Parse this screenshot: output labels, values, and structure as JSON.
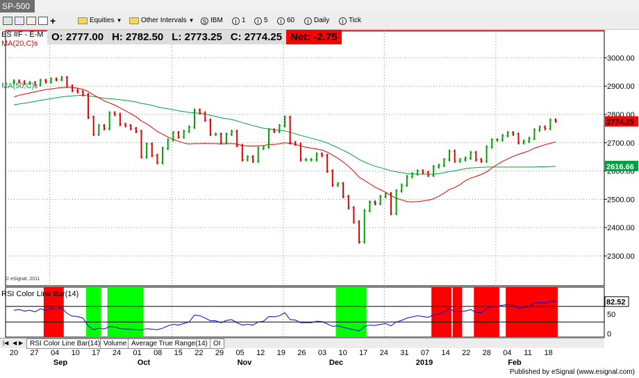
{
  "window": {
    "title": "SP-500"
  },
  "toolbar": {
    "items": [
      {
        "label": "Equities",
        "icon": "folder-icon"
      },
      {
        "label": "Other Intervals",
        "icon": "folder-icon"
      },
      {
        "label": "IBM",
        "icon": "S"
      },
      {
        "label": "1",
        "icon": "I"
      },
      {
        "label": "5",
        "icon": "I"
      },
      {
        "label": "60",
        "icon": "I"
      },
      {
        "label": "Daily",
        "icon": "I"
      },
      {
        "label": "Tick",
        "icon": "I"
      }
    ]
  },
  "quote": {
    "symbol_label": "ES #F - E-M",
    "ma_label": "MA(20,C)s",
    "open": "O: 2777.00",
    "high": "H: 2782.50",
    "low": "L: 2773.25",
    "close": "C: 2774.25",
    "net": "Net: -2.75"
  },
  "colors": {
    "up": "#00a000",
    "down": "#e00000",
    "ma20": "#e00000",
    "ma50": "#00a040",
    "rsi_line": "#0000dd",
    "overbought_zone": "#ff0000",
    "oversold_zone": "#00ff00",
    "net_bg": "#ff0000"
  },
  "price_axis": {
    "ticks": [
      "3000.00",
      "2900.00",
      "2800.00",
      "2700.00",
      "2600.00",
      "2500.00",
      "2400.00",
      "2300.00"
    ],
    "last_price": "2774.25",
    "ma50_value": "2616.66"
  },
  "price_watermark": "© eSignal, 2011",
  "ma50_label": "MA(50,C)s",
  "rsi_panel": {
    "title": "RSI Color Line Bar(14)",
    "value": "82.52",
    "ticks": [
      "50",
      "0"
    ]
  },
  "date_axis": {
    "days": [
      "20",
      "27",
      "04",
      "10",
      "17",
      "24",
      "01",
      "08",
      "15",
      "22",
      "29",
      "05",
      "12",
      "19",
      "26",
      "03",
      "10",
      "17",
      "24",
      "31",
      "07",
      "14",
      "22",
      "28",
      "04",
      "11",
      "18"
    ],
    "months": [
      "Sep",
      "Oct",
      "Nov",
      "Dec",
      "2019",
      "Feb"
    ]
  },
  "tabs": [
    "RSI Color Line Bar(14)",
    "Volume",
    "Average True Range(14)",
    "OI"
  ],
  "footer": {
    "published": "Published by eSignal (www.esignal.com)"
  },
  "chart_data": {
    "type": "candlestick",
    "x": [
      "2018-09-20",
      "2018-09-21",
      "2018-09-24",
      "2018-09-25",
      "2018-09-26",
      "2018-09-27",
      "2018-09-28",
      "2018-10-01",
      "2018-10-02",
      "2018-10-03",
      "2018-10-04",
      "2018-10-05",
      "2018-10-08",
      "2018-10-09",
      "2018-10-10",
      "2018-10-11",
      "2018-10-12",
      "2018-10-15",
      "2018-10-16",
      "2018-10-17",
      "2018-10-18",
      "2018-10-19",
      "2018-10-22",
      "2018-10-23",
      "2018-10-24",
      "2018-10-25",
      "2018-10-26",
      "2018-10-29",
      "2018-10-30",
      "2018-10-31",
      "2018-11-01",
      "2018-11-02",
      "2018-11-05",
      "2018-11-06",
      "2018-11-07",
      "2018-11-08",
      "2018-11-09",
      "2018-11-12",
      "2018-11-13",
      "2018-11-14",
      "2018-11-15",
      "2018-11-16",
      "2018-11-19",
      "2018-11-20",
      "2018-11-21",
      "2018-11-23",
      "2018-11-26",
      "2018-11-27",
      "2018-11-28",
      "2018-11-29",
      "2018-11-30",
      "2018-12-03",
      "2018-12-04",
      "2018-12-06",
      "2018-12-07",
      "2018-12-10",
      "2018-12-11",
      "2018-12-12",
      "2018-12-13",
      "2018-12-14",
      "2018-12-17",
      "2018-12-18",
      "2018-12-19",
      "2018-12-20",
      "2018-12-21",
      "2018-12-24",
      "2018-12-26",
      "2018-12-27",
      "2018-12-28",
      "2018-12-31",
      "2019-01-02",
      "2019-01-03",
      "2019-01-04",
      "2019-01-07",
      "2019-01-08",
      "2019-01-09",
      "2019-01-10",
      "2019-01-11",
      "2019-01-14",
      "2019-01-15",
      "2019-01-16",
      "2019-01-17",
      "2019-01-18",
      "2019-01-22",
      "2019-01-23",
      "2019-01-24",
      "2019-01-25",
      "2019-01-28",
      "2019-01-29",
      "2019-01-30",
      "2019-01-31",
      "2019-02-01",
      "2019-02-04",
      "2019-02-05",
      "2019-02-06",
      "2019-02-07",
      "2019-02-08",
      "2019-02-11",
      "2019-02-12",
      "2019-02-13",
      "2019-02-14",
      "2019-02-15",
      "2019-02-19"
    ],
    "close": [
      2918,
      2915,
      2910,
      2912,
      2905,
      2920,
      2915,
      2925,
      2923,
      2930,
      2900,
      2885,
      2880,
      2870,
      2790,
      2730,
      2760,
      2750,
      2805,
      2800,
      2765,
      2760,
      2750,
      2740,
      2650,
      2695,
      2655,
      2630,
      2680,
      2710,
      2735,
      2720,
      2740,
      2755,
      2815,
      2805,
      2780,
      2730,
      2730,
      2700,
      2730,
      2740,
      2690,
      2640,
      2650,
      2635,
      2680,
      2685,
      2745,
      2740,
      2760,
      2790,
      2700,
      2695,
      2640,
      2640,
      2640,
      2660,
      2655,
      2600,
      2550,
      2555,
      2510,
      2470,
      2420,
      2350,
      2460,
      2490,
      2485,
      2510,
      2520,
      2450,
      2530,
      2550,
      2580,
      2590,
      2600,
      2595,
      2585,
      2615,
      2620,
      2640,
      2670,
      2635,
      2640,
      2645,
      2665,
      2640,
      2635,
      2685,
      2710,
      2710,
      2725,
      2735,
      2730,
      2700,
      2705,
      2715,
      2745,
      2755,
      2750,
      2780,
      2777
    ],
    "ma20": [
      2862,
      2868,
      2872,
      2876,
      2880,
      2884,
      2888,
      2890,
      2893,
      2895,
      2896,
      2895,
      2893,
      2889,
      2881,
      2869,
      2859,
      2848,
      2841,
      2833,
      2823,
      2813,
      2803,
      2792,
      2777,
      2767,
      2754,
      2740,
      2730,
      2720,
      2712,
      2705,
      2699,
      2695,
      2697,
      2697,
      2698,
      2697,
      2697,
      2695,
      2697,
      2697,
      2695,
      2690,
      2689,
      2688,
      2689,
      2690,
      2694,
      2694,
      2696,
      2700,
      2698,
      2694,
      2688,
      2684,
      2681,
      2678,
      2674,
      2667,
      2656,
      2645,
      2632,
      2617,
      2599,
      2578,
      2567,
      2555,
      2543,
      2534,
      2525,
      2513,
      2504,
      2498,
      2492,
      2491,
      2492,
      2494,
      2497,
      2502,
      2511,
      2522,
      2535,
      2542,
      2552,
      2566,
      2575,
      2581,
      2588,
      2597,
      2611,
      2623,
      2634,
      2643,
      2652,
      2659,
      2665,
      2671,
      2681,
      2687,
      2693,
      2698,
      2703
    ],
    "ma50": [
      2834,
      2837,
      2840,
      2843,
      2846,
      2850,
      2853,
      2856,
      2859,
      2862,
      2864,
      2866,
      2867,
      2868,
      2866,
      2863,
      2860,
      2857,
      2856,
      2854,
      2852,
      2850,
      2847,
      2844,
      2839,
      2836,
      2832,
      2827,
      2823,
      2820,
      2817,
      2813,
      2810,
      2807,
      2806,
      2804,
      2801,
      2797,
      2793,
      2788,
      2785,
      2782,
      2777,
      2771,
      2766,
      2760,
      2756,
      2751,
      2749,
      2746,
      2744,
      2742,
      2737,
      2732,
      2726,
      2721,
      2716,
      2711,
      2706,
      2699,
      2691,
      2682,
      2673,
      2664,
      2653,
      2641,
      2632,
      2624,
      2617,
      2612,
      2607,
      2601,
      2597,
      2594,
      2591,
      2590,
      2589,
      2589,
      2589,
      2589,
      2591,
      2594,
      2598,
      2601,
      2605,
      2608,
      2611,
      2612,
      2613,
      2614,
      2614,
      2614,
      2614,
      2614,
      2614,
      2614,
      2614,
      2614,
      2614,
      2615,
      2615,
      2616,
      2617
    ],
    "rsi": [
      60,
      62,
      58,
      60,
      56,
      64,
      60,
      65,
      63,
      66,
      52,
      45,
      44,
      40,
      20,
      10,
      14,
      12,
      18,
      17,
      13,
      12,
      11,
      10,
      9,
      13,
      11,
      10,
      14,
      20,
      24,
      22,
      26,
      30,
      48,
      46,
      40,
      33,
      33,
      28,
      34,
      36,
      28,
      22,
      24,
      22,
      30,
      32,
      44,
      43,
      46,
      54,
      36,
      35,
      28,
      28,
      28,
      32,
      31,
      25,
      19,
      20,
      16,
      13,
      10,
      7,
      18,
      22,
      21,
      24,
      26,
      20,
      30,
      34,
      40,
      43,
      46,
      44,
      42,
      48,
      50,
      56,
      64,
      56,
      57,
      58,
      62,
      55,
      54,
      64,
      70,
      70,
      73,
      75,
      74,
      65,
      67,
      70,
      78,
      80,
      78,
      84,
      82.5
    ],
    "rsi_zones_overbought": [
      [
        "2018-09-28",
        "2018-10-03"
      ],
      [
        "2019-01-15",
        "2019-01-18"
      ],
      [
        "2019-01-22",
        "2019-01-23"
      ],
      [
        "2019-01-28",
        "2019-02-01"
      ],
      [
        "2019-02-05",
        "2019-02-19"
      ]
    ],
    "rsi_zones_oversold": [
      [
        "2018-10-10",
        "2018-10-12"
      ],
      [
        "2018-10-16",
        "2018-10-24"
      ],
      [
        "2018-12-18",
        "2018-12-26"
      ]
    ],
    "ylim": [
      2280,
      3050
    ],
    "rsi_ylim": [
      0,
      100
    ]
  }
}
